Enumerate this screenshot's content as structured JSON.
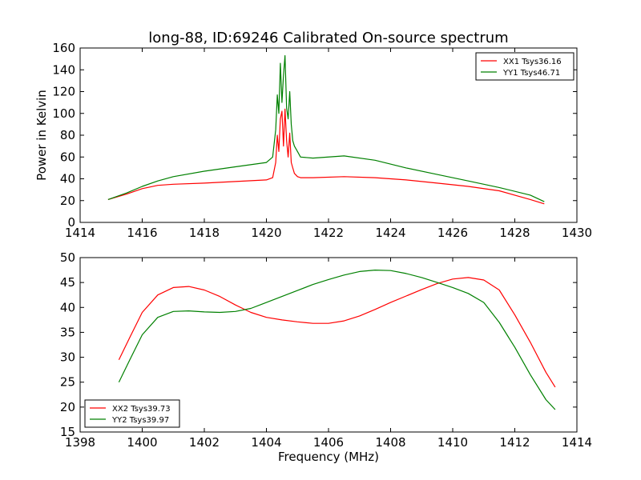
{
  "title": "long-88, ID:69246 Calibrated On-source spectrum",
  "colors": {
    "red": "#ff0000",
    "green": "#008000"
  },
  "chart_data": [
    {
      "type": "line",
      "ylabel": "Power in Kelvin",
      "xlabel": "",
      "xlim": [
        1414,
        1430
      ],
      "ylim": [
        0,
        160
      ],
      "xticks": [
        1414,
        1416,
        1418,
        1420,
        1422,
        1424,
        1426,
        1428,
        1430
      ],
      "yticks": [
        0,
        20,
        40,
        60,
        80,
        100,
        120,
        140,
        160
      ],
      "legend_position": "top-right",
      "series": [
        {
          "name": "XX1 Tsys36.16",
          "color": "#ff0000",
          "x": [
            1414.9,
            1415.5,
            1416.0,
            1416.5,
            1417.0,
            1418.0,
            1419.0,
            1420.0,
            1420.2,
            1420.3,
            1420.35,
            1420.4,
            1420.45,
            1420.5,
            1420.55,
            1420.6,
            1420.65,
            1420.7,
            1420.75,
            1420.8,
            1420.85,
            1420.9,
            1421.0,
            1421.1,
            1421.5,
            1422.5,
            1423.5,
            1424.5,
            1425.5,
            1426.5,
            1427.5,
            1428.5,
            1428.95
          ],
          "y": [
            21,
            26,
            31,
            34,
            35,
            36,
            37.5,
            39,
            41,
            55,
            80,
            65,
            95,
            102,
            70,
            104,
            75,
            60,
            82,
            55,
            50,
            45,
            42,
            41,
            41,
            42,
            41,
            39,
            36,
            33,
            29,
            21,
            17
          ]
        },
        {
          "name": "YY1 Tsys46.71",
          "color": "#008000",
          "x": [
            1414.9,
            1415.5,
            1416.0,
            1416.5,
            1417.0,
            1418.0,
            1419.0,
            1420.0,
            1420.2,
            1420.3,
            1420.35,
            1420.4,
            1420.45,
            1420.5,
            1420.55,
            1420.6,
            1420.65,
            1420.7,
            1420.75,
            1420.8,
            1420.85,
            1420.9,
            1421.0,
            1421.1,
            1421.5,
            1422.5,
            1423.5,
            1424.5,
            1425.5,
            1426.5,
            1427.5,
            1428.5,
            1428.95
          ],
          "y": [
            21,
            27,
            33,
            38,
            42,
            47,
            51,
            55,
            60,
            85,
            117,
            100,
            146,
            110,
            135,
            153,
            105,
            95,
            120,
            90,
            75,
            70,
            65,
            60,
            59,
            61,
            57,
            50,
            44,
            38,
            32,
            25,
            19
          ]
        }
      ]
    },
    {
      "type": "line",
      "xlabel": "Frequency (MHz)",
      "ylabel": "",
      "xlim": [
        1398,
        1414
      ],
      "ylim": [
        15,
        50
      ],
      "xticks": [
        1398,
        1400,
        1402,
        1404,
        1406,
        1408,
        1410,
        1412,
        1414
      ],
      "yticks": [
        15,
        20,
        25,
        30,
        35,
        40,
        45,
        50
      ],
      "legend_position": "bottom-left",
      "series": [
        {
          "name": "XX2 Tsys39.73",
          "color": "#ff0000",
          "x": [
            1399.25,
            1399.6,
            1400.0,
            1400.5,
            1401.0,
            1401.5,
            1402.0,
            1402.5,
            1403.0,
            1403.5,
            1404.0,
            1404.5,
            1405.0,
            1405.5,
            1406.0,
            1406.5,
            1407.0,
            1407.5,
            1408.0,
            1408.5,
            1409.0,
            1409.5,
            1410.0,
            1410.5,
            1411.0,
            1411.5,
            1412.0,
            1412.5,
            1413.0,
            1413.3
          ],
          "y": [
            29.5,
            34,
            39,
            42.5,
            44,
            44.2,
            43.5,
            42.2,
            40.5,
            39,
            38,
            37.5,
            37.1,
            36.8,
            36.8,
            37.3,
            38.3,
            39.6,
            41,
            42.3,
            43.6,
            44.8,
            45.7,
            46,
            45.5,
            43.5,
            38.5,
            33,
            27,
            24
          ]
        },
        {
          "name": "YY2 Tsys39.97",
          "color": "#008000",
          "x": [
            1399.25,
            1399.6,
            1400.0,
            1400.5,
            1401.0,
            1401.5,
            1402.0,
            1402.5,
            1403.0,
            1403.5,
            1404.0,
            1404.5,
            1405.0,
            1405.5,
            1406.0,
            1406.5,
            1407.0,
            1407.5,
            1408.0,
            1408.5,
            1409.0,
            1409.5,
            1410.0,
            1410.5,
            1411.0,
            1411.5,
            1412.0,
            1412.5,
            1413.0,
            1413.3
          ],
          "y": [
            25,
            29.5,
            34.5,
            38,
            39.2,
            39.3,
            39.1,
            39,
            39.2,
            39.8,
            41,
            42.2,
            43.4,
            44.6,
            45.6,
            46.5,
            47.2,
            47.5,
            47.4,
            46.8,
            46,
            45,
            44,
            42.8,
            41,
            37,
            32,
            26.5,
            21.5,
            19.5
          ]
        }
      ]
    }
  ]
}
